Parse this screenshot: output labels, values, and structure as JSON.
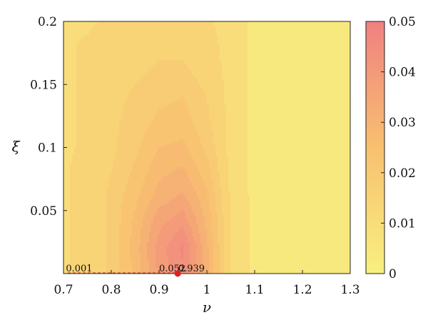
{
  "chart_data": {
    "type": "heatmap",
    "title": "",
    "xlabel": "ν",
    "ylabel": "ξ",
    "xlim": [
      0.7,
      1.3
    ],
    "ylim": [
      0.0,
      0.2
    ],
    "x_ticks": [
      0.7,
      0.8,
      0.9,
      1.0,
      1.1,
      1.2,
      1.3
    ],
    "x_tick_labels": [
      "0.7",
      "0.8",
      "0.9",
      "1",
      "1.1",
      "1.2",
      "1.3"
    ],
    "y_ticks": [
      0.05,
      0.1,
      0.15,
      0.2
    ],
    "y_tick_labels": [
      "0.05",
      "0.1",
      "0.15",
      "0.2"
    ],
    "colorbar": {
      "range": [
        0,
        0.05
      ],
      "ticks": [
        0,
        0.01,
        0.02,
        0.03,
        0.04,
        0.05
      ],
      "tick_labels": [
        "0",
        "0.01",
        "0.02",
        "0.03",
        "0.04",
        "0.05"
      ],
      "color_low": "#f8f080",
      "color_mid": "#f8c070",
      "color_high": "#f08080"
    },
    "contour_levels": [
      0.0075,
      0.0125,
      0.017,
      0.021,
      0.025,
      0.029,
      0.033,
      0.037,
      0.041,
      0.045
    ],
    "field_grid": {
      "x": [
        0.7,
        0.75,
        0.8,
        0.85,
        0.9,
        0.95,
        1.0,
        1.05,
        1.1,
        1.15,
        1.2,
        1.25,
        1.3
      ],
      "y": [
        0.0,
        0.02,
        0.04,
        0.06,
        0.08,
        0.1,
        0.12,
        0.14,
        0.16,
        0.18,
        0.2
      ],
      "z": [
        [
          0.012,
          0.014,
          0.018,
          0.026,
          0.038,
          0.044,
          0.03,
          0.012,
          0.006,
          0.005,
          0.005,
          0.005,
          0.005
        ],
        [
          0.012,
          0.014,
          0.018,
          0.027,
          0.039,
          0.046,
          0.03,
          0.012,
          0.006,
          0.005,
          0.005,
          0.005,
          0.005
        ],
        [
          0.012,
          0.014,
          0.018,
          0.026,
          0.036,
          0.04,
          0.028,
          0.012,
          0.006,
          0.005,
          0.005,
          0.005,
          0.005
        ],
        [
          0.012,
          0.014,
          0.018,
          0.024,
          0.031,
          0.034,
          0.026,
          0.012,
          0.006,
          0.005,
          0.005,
          0.005,
          0.005
        ],
        [
          0.012,
          0.014,
          0.017,
          0.022,
          0.028,
          0.03,
          0.023,
          0.011,
          0.006,
          0.005,
          0.005,
          0.005,
          0.005
        ],
        [
          0.012,
          0.013,
          0.016,
          0.02,
          0.025,
          0.026,
          0.02,
          0.011,
          0.006,
          0.005,
          0.005,
          0.005,
          0.005
        ],
        [
          0.012,
          0.013,
          0.016,
          0.019,
          0.022,
          0.023,
          0.018,
          0.011,
          0.006,
          0.005,
          0.005,
          0.005,
          0.005
        ],
        [
          0.012,
          0.013,
          0.015,
          0.018,
          0.02,
          0.021,
          0.017,
          0.011,
          0.006,
          0.005,
          0.005,
          0.005,
          0.005
        ],
        [
          0.012,
          0.013,
          0.014,
          0.016,
          0.018,
          0.018,
          0.015,
          0.011,
          0.006,
          0.005,
          0.005,
          0.005,
          0.005
        ],
        [
          0.012,
          0.013,
          0.014,
          0.015,
          0.016,
          0.016,
          0.014,
          0.011,
          0.006,
          0.005,
          0.005,
          0.005,
          0.005
        ],
        [
          0.012,
          0.012,
          0.013,
          0.014,
          0.015,
          0.015,
          0.013,
          0.011,
          0.006,
          0.005,
          0.005,
          0.005,
          0.005
        ]
      ]
    },
    "marker": {
      "x": 0.939,
      "y": 0.0,
      "color": "#e02020"
    },
    "annotations": [
      {
        "text": "0.001",
        "x": 0.705,
        "y": 0.0
      },
      {
        "text": "0.052",
        "x": 0.9,
        "y": 0.0
      },
      {
        "text": "0.939",
        "x": 0.94,
        "y": 0.0
      }
    ]
  }
}
